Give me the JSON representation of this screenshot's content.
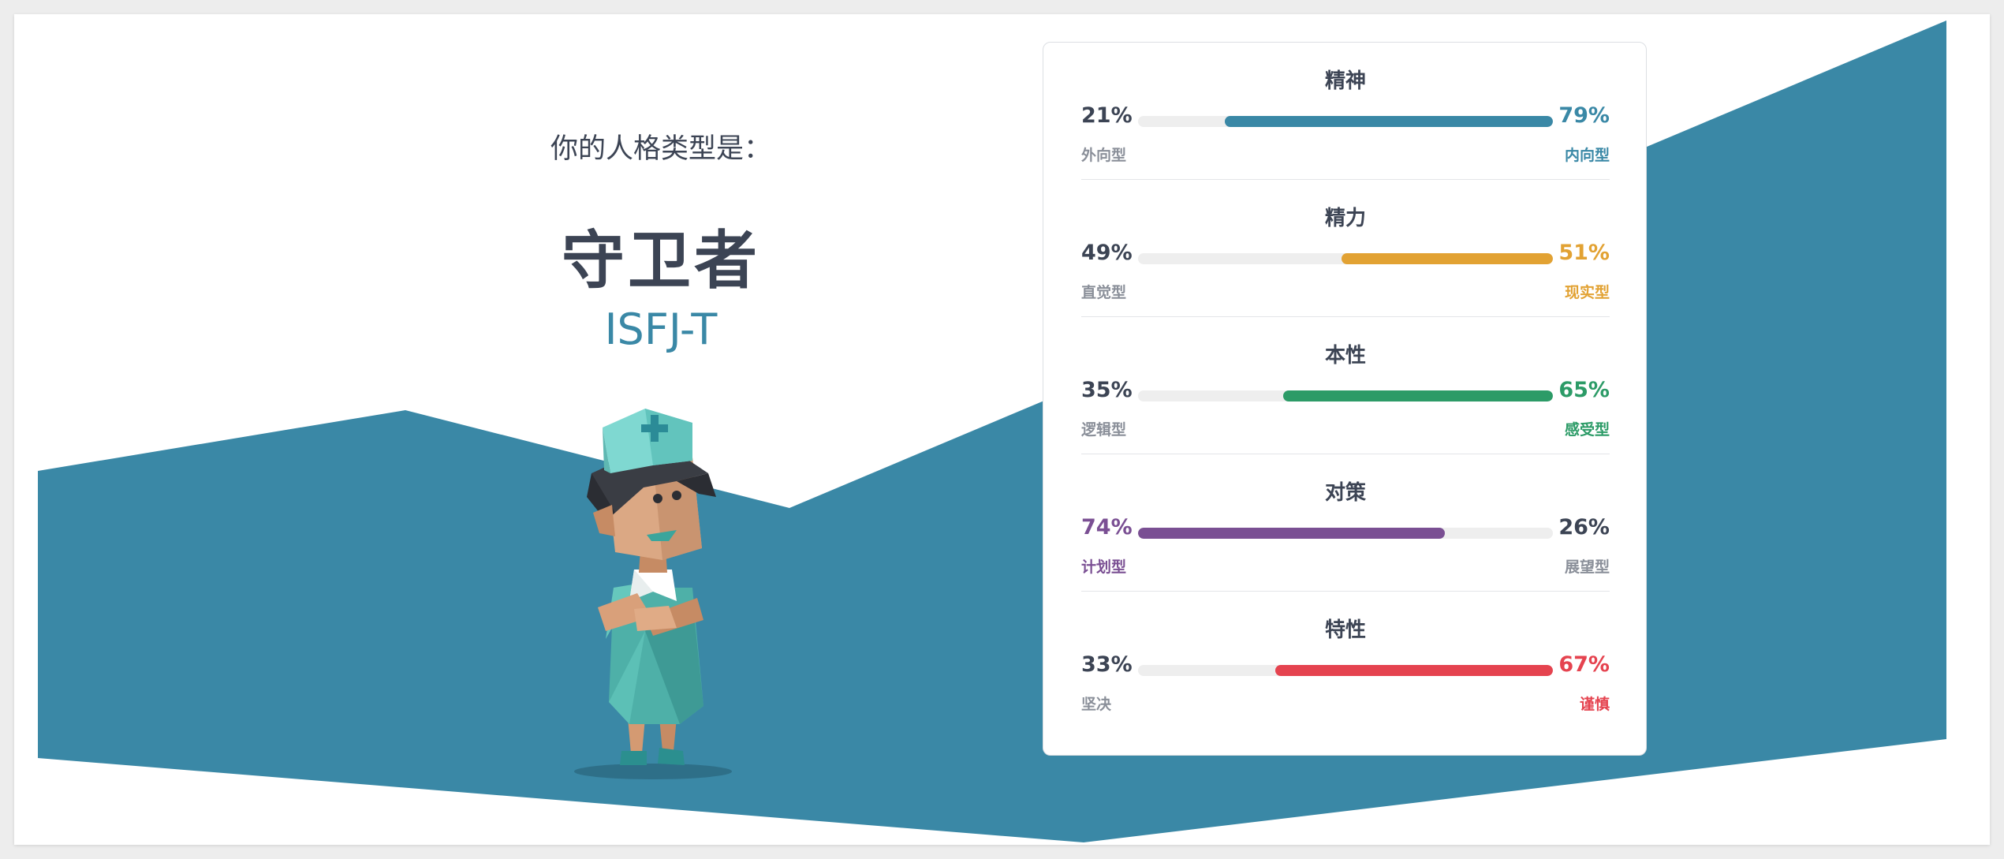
{
  "result": {
    "prefix": "你的人格类型是：",
    "name": "守卫者",
    "code": "ISFJ-T"
  },
  "colors": {
    "backdrop": "#3a88a6",
    "text": "#3c4454",
    "muted": "#8a8f99"
  },
  "traits": [
    {
      "title": "精神",
      "left_pct": "21%",
      "left_label": "外向型",
      "right_pct": "79%",
      "right_label": "内向型",
      "fill_side": "right",
      "fill_fraction": 0.79,
      "color": "#3a88a6"
    },
    {
      "title": "精力",
      "left_pct": "49%",
      "left_label": "直觉型",
      "right_pct": "51%",
      "right_label": "现实型",
      "fill_side": "right",
      "fill_fraction": 0.51,
      "color": "#e2a233"
    },
    {
      "title": "本性",
      "left_pct": "35%",
      "left_label": "逻辑型",
      "right_pct": "65%",
      "right_label": "感受型",
      "fill_side": "right",
      "fill_fraction": 0.65,
      "color": "#2c9b67"
    },
    {
      "title": "对策",
      "left_pct": "74%",
      "left_label": "计划型",
      "right_pct": "26%",
      "right_label": "展望型",
      "fill_side": "left",
      "fill_fraction": 0.74,
      "color": "#7a4f93"
    },
    {
      "title": "特性",
      "left_pct": "33%",
      "left_label": "坚决",
      "right_pct": "67%",
      "right_label": "谨慎",
      "fill_side": "right",
      "fill_fraction": 0.67,
      "color": "#e5434f"
    }
  ]
}
